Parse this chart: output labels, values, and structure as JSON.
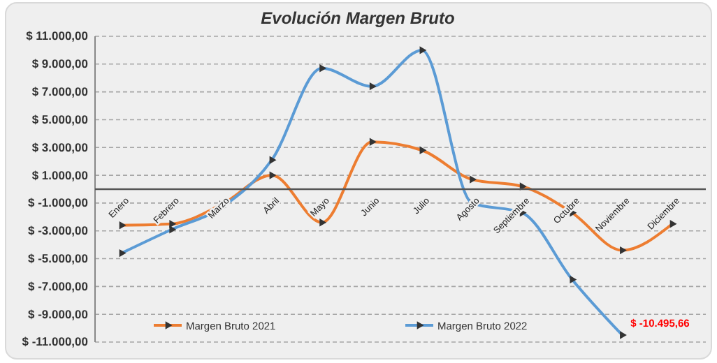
{
  "chart_data": {
    "type": "line",
    "title": "Evolución Margen Bruto",
    "categories": [
      "Enero",
      "Febrero",
      "Marzo",
      "Abril",
      "Mayo",
      "Junio",
      "Julio",
      "Agosto",
      "Septiembre",
      "Octubre",
      "Noviembre",
      "Diciembre"
    ],
    "series": [
      {
        "name": "Margen Bruto 2021",
        "color": "#ed7d31",
        "values": [
          -2600,
          -2500,
          -1100,
          1000,
          -2400,
          3400,
          2800,
          700,
          200,
          -1700,
          -4400,
          -2500
        ]
      },
      {
        "name": "Margen Bruto 2022",
        "color": "#5b9bd5",
        "values": [
          -4600,
          -2900,
          -1300,
          2100,
          8700,
          7400,
          10000,
          -1000,
          -1700,
          -6500,
          -10495.66,
          null
        ]
      }
    ],
    "ylim": [
      -11000,
      11000
    ],
    "yticks": [
      {
        "value": 11000,
        "label": "$ 11.000,00"
      },
      {
        "value": 9000,
        "label": "$ 9.000,00"
      },
      {
        "value": 7000,
        "label": "$ 7.000,00"
      },
      {
        "value": 5000,
        "label": "$ 5.000,00"
      },
      {
        "value": 3000,
        "label": "$ 3.000,00"
      },
      {
        "value": 1000,
        "label": "$ 1.000,00"
      },
      {
        "value": -1000,
        "label": "$ -1.000,00"
      },
      {
        "value": -3000,
        "label": "$ -3.000,00"
      },
      {
        "value": -5000,
        "label": "$ -5.000,00"
      },
      {
        "value": -7000,
        "label": "$ -7.000,00"
      },
      {
        "value": -9000,
        "label": "$ -9.000,00"
      },
      {
        "value": -11000,
        "label": "$ -11.000,00"
      }
    ],
    "annotations": [
      {
        "text": "$ -10.495,66",
        "x": "Noviembre",
        "y": -10495.66
      }
    ],
    "grid": "y",
    "legend": "bottom",
    "marker": "triangle",
    "line_style": "solid"
  }
}
